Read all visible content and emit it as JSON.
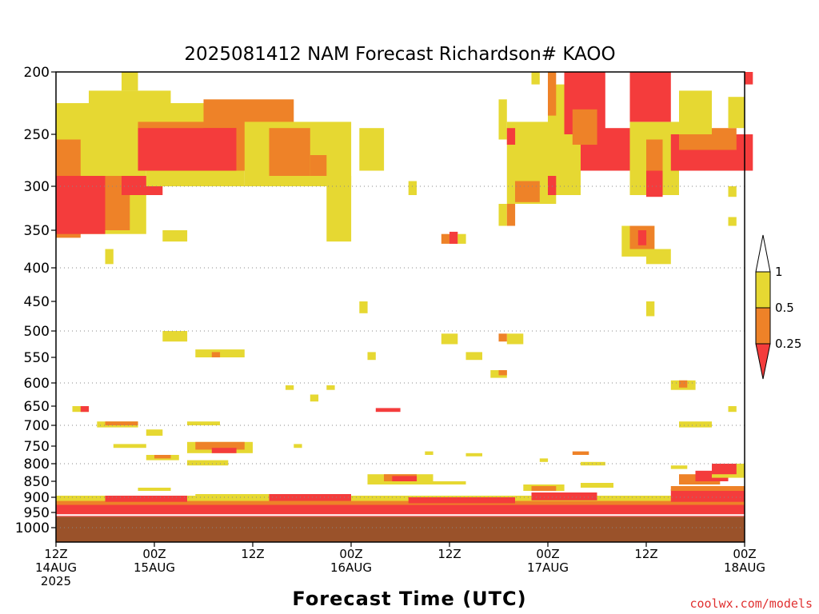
{
  "chart_data": {
    "type": "heatmap",
    "title": "2025081412 NAM Forecast Richardson# KAOO",
    "xlabel": "Forecast Time (UTC)",
    "credit": "coolwx.com/models",
    "y_axis": {
      "scale": "pressure (inverted, log-like)",
      "range": [
        1000,
        200
      ],
      "tick_labels": [
        "200",
        "250",
        "300",
        "350",
        "400",
        "450",
        "500",
        "550",
        "600",
        "650",
        "700",
        "750",
        "800",
        "850",
        "900",
        "950",
        "1000"
      ],
      "gridlines_at": [
        300,
        400,
        500,
        600,
        700,
        800,
        900,
        1000
      ]
    },
    "x_axis": {
      "range": [
        "2025-08-14 12Z",
        "2025-08-18 00Z"
      ],
      "ticks": [
        {
          "hour": 0,
          "line1": "12Z",
          "line2": "14AUG",
          "line3": "2025"
        },
        {
          "hour": 12,
          "line1": "00Z",
          "line2": "15AUG",
          "line3": ""
        },
        {
          "hour": 24,
          "line1": "12Z",
          "line2": "",
          "line3": ""
        },
        {
          "hour": 36,
          "line1": "00Z",
          "line2": "16AUG",
          "line3": ""
        },
        {
          "hour": 48,
          "line1": "12Z",
          "line2": "",
          "line3": ""
        },
        {
          "hour": 60,
          "line1": "00Z",
          "line2": "17AUG",
          "line3": ""
        },
        {
          "hour": 72,
          "line1": "12Z",
          "line2": "",
          "line3": ""
        },
        {
          "hour": 84,
          "line1": "00Z",
          "line2": "18AUG",
          "line3": ""
        }
      ]
    },
    "legend": {
      "labels": [
        "1",
        "0.5",
        "0.25"
      ],
      "classes": [
        {
          "range": "0.5 to 1",
          "color": "#e6d832"
        },
        {
          "range": "0.25 to 0.5",
          "color": "#ee8228"
        },
        {
          "range": "below 0.25",
          "color": "#f43c3c"
        }
      ]
    },
    "ground": {
      "color": "#9a522a",
      "surface_pressure": 964
    },
    "blob_colors": {
      "y": "#e6d832",
      "o": "#ee8228",
      "r": "#f43c3c"
    },
    "regions": [
      {
        "c": "y",
        "h": [
          0,
          11
        ],
        "p": [
          225,
          355
        ]
      },
      {
        "c": "y",
        "h": [
          4,
          14
        ],
        "p": [
          215,
          245
        ]
      },
      {
        "c": "y",
        "h": [
          8,
          10
        ],
        "p": [
          200,
          215
        ]
      },
      {
        "c": "o",
        "h": [
          0,
          3
        ],
        "p": [
          255,
          360
        ]
      },
      {
        "c": "o",
        "h": [
          4,
          9
        ],
        "p": [
          290,
          350
        ]
      },
      {
        "c": "r",
        "h": [
          0,
          6
        ],
        "p": [
          290,
          355
        ]
      },
      {
        "c": "r",
        "h": [
          8,
          13
        ],
        "p": [
          290,
          310
        ]
      },
      {
        "c": "y",
        "h": [
          11,
          23
        ],
        "p": [
          225,
          300
        ]
      },
      {
        "c": "o",
        "h": [
          10,
          27
        ],
        "p": [
          240,
          285
        ]
      },
      {
        "c": "o",
        "h": [
          18,
          29
        ],
        "p": [
          222,
          245
        ]
      },
      {
        "c": "r",
        "h": [
          10,
          22
        ],
        "p": [
          245,
          285
        ]
      },
      {
        "c": "r",
        "h": [
          18,
          22
        ],
        "p": [
          245,
          265
        ]
      },
      {
        "c": "y",
        "h": [
          23,
          36
        ],
        "p": [
          240,
          300
        ]
      },
      {
        "c": "o",
        "h": [
          26,
          31
        ],
        "p": [
          245,
          290
        ]
      },
      {
        "c": "o",
        "h": [
          31,
          33
        ],
        "p": [
          270,
          290
        ]
      },
      {
        "c": "y",
        "h": [
          33,
          36
        ],
        "p": [
          290,
          365
        ]
      },
      {
        "c": "y",
        "h": [
          37,
          40
        ],
        "p": [
          245,
          285
        ]
      },
      {
        "c": "y",
        "h": [
          13,
          16
        ],
        "p": [
          350,
          365
        ]
      },
      {
        "c": "y",
        "h": [
          6,
          7
        ],
        "p": [
          375,
          395
        ]
      },
      {
        "c": "y",
        "h": [
          43,
          44
        ],
        "p": [
          295,
          310
        ]
      },
      {
        "c": "o",
        "h": [
          47,
          49
        ],
        "p": [
          355,
          368
        ]
      },
      {
        "c": "r",
        "h": [
          48,
          49
        ],
        "p": [
          352,
          368
        ]
      },
      {
        "c": "y",
        "h": [
          49,
          50
        ],
        "p": [
          355,
          368
        ]
      },
      {
        "c": "y",
        "h": [
          54,
          55
        ],
        "p": [
          222,
          255
        ]
      },
      {
        "c": "y",
        "h": [
          54,
          55
        ],
        "p": [
          320,
          345
        ]
      },
      {
        "c": "o",
        "h": [
          55,
          56
        ],
        "p": [
          320,
          345
        ]
      },
      {
        "c": "y",
        "h": [
          55,
          61
        ],
        "p": [
          240,
          320
        ]
      },
      {
        "c": "o",
        "h": [
          56,
          59
        ],
        "p": [
          295,
          318
        ]
      },
      {
        "c": "r",
        "h": [
          55,
          56
        ],
        "p": [
          245,
          260
        ]
      },
      {
        "c": "y",
        "h": [
          58,
          59
        ],
        "p": [
          200,
          210
        ]
      },
      {
        "c": "y",
        "h": [
          60,
          64
        ],
        "p": [
          210,
          310
        ]
      },
      {
        "c": "o",
        "h": [
          60,
          61
        ],
        "p": [
          200,
          235
        ]
      },
      {
        "c": "r",
        "h": [
          60,
          61
        ],
        "p": [
          290,
          310
        ]
      },
      {
        "c": "r",
        "h": [
          62,
          67
        ],
        "p": [
          200,
          250
        ]
      },
      {
        "c": "r",
        "h": [
          64,
          73
        ],
        "p": [
          245,
          285
        ]
      },
      {
        "c": "o",
        "h": [
          63,
          66
        ],
        "p": [
          230,
          260
        ]
      },
      {
        "c": "y",
        "h": [
          70,
          76
        ],
        "p": [
          240,
          310
        ]
      },
      {
        "c": "r",
        "h": [
          70,
          75
        ],
        "p": [
          200,
          240
        ]
      },
      {
        "c": "o",
        "h": [
          72,
          74
        ],
        "p": [
          255,
          295
        ]
      },
      {
        "c": "r",
        "h": [
          72,
          74
        ],
        "p": [
          285,
          312
        ]
      },
      {
        "c": "r",
        "h": [
          75,
          85
        ],
        "p": [
          250,
          285
        ]
      },
      {
        "c": "o",
        "h": [
          76,
          83
        ],
        "p": [
          245,
          265
        ]
      },
      {
        "c": "y",
        "h": [
          76,
          80
        ],
        "p": [
          215,
          250
        ]
      },
      {
        "c": "y",
        "h": [
          82,
          84
        ],
        "p": [
          220,
          245
        ]
      },
      {
        "c": "r",
        "h": [
          84,
          85
        ],
        "p": [
          200,
          210
        ]
      },
      {
        "c": "y",
        "h": [
          82,
          83
        ],
        "p": [
          300,
          312
        ]
      },
      {
        "c": "y",
        "h": [
          82,
          83
        ],
        "p": [
          335,
          345
        ]
      },
      {
        "c": "y",
        "h": [
          69,
          73
        ],
        "p": [
          345,
          385
        ]
      },
      {
        "c": "o",
        "h": [
          70,
          73
        ],
        "p": [
          345,
          375
        ]
      },
      {
        "c": "r",
        "h": [
          71,
          72
        ],
        "p": [
          350,
          370
        ]
      },
      {
        "c": "y",
        "h": [
          72,
          75
        ],
        "p": [
          375,
          395
        ]
      },
      {
        "c": "y",
        "h": [
          72,
          73
        ],
        "p": [
          450,
          475
        ]
      },
      {
        "c": "y",
        "h": [
          37,
          38
        ],
        "p": [
          450,
          470
        ]
      },
      {
        "c": "y",
        "h": [
          13,
          16
        ],
        "p": [
          500,
          520
        ]
      },
      {
        "c": "y",
        "h": [
          17,
          23
        ],
        "p": [
          535,
          550
        ]
      },
      {
        "c": "o",
        "h": [
          19,
          20
        ],
        "p": [
          540,
          550
        ]
      },
      {
        "c": "y",
        "h": [
          38,
          39
        ],
        "p": [
          540,
          555
        ]
      },
      {
        "c": "y",
        "h": [
          47,
          49
        ],
        "p": [
          505,
          525
        ]
      },
      {
        "c": "y",
        "h": [
          50,
          52
        ],
        "p": [
          540,
          555
        ]
      },
      {
        "c": "y",
        "h": [
          55,
          57
        ],
        "p": [
          505,
          525
        ]
      },
      {
        "c": "o",
        "h": [
          54,
          55
        ],
        "p": [
          505,
          520
        ]
      },
      {
        "c": "y",
        "h": [
          53,
          55
        ],
        "p": [
          575,
          590
        ]
      },
      {
        "c": "o",
        "h": [
          54,
          55
        ],
        "p": [
          575,
          585
        ]
      },
      {
        "c": "y",
        "h": [
          75,
          78
        ],
        "p": [
          595,
          615
        ]
      },
      {
        "c": "o",
        "h": [
          76,
          77
        ],
        "p": [
          595,
          610
        ]
      },
      {
        "c": "y",
        "h": [
          28,
          29
        ],
        "p": [
          605,
          615
        ]
      },
      {
        "c": "y",
        "h": [
          31,
          32
        ],
        "p": [
          625,
          640
        ]
      },
      {
        "c": "y",
        "h": [
          33,
          34
        ],
        "p": [
          605,
          615
        ]
      },
      {
        "c": "y",
        "h": [
          2,
          4
        ],
        "p": [
          650,
          665
        ]
      },
      {
        "c": "r",
        "h": [
          3,
          4
        ],
        "p": [
          650,
          665
        ]
      },
      {
        "c": "r",
        "h": [
          39,
          42
        ],
        "p": [
          655,
          665
        ]
      },
      {
        "c": "y",
        "h": [
          82,
          83
        ],
        "p": [
          650,
          665
        ]
      },
      {
        "c": "y",
        "h": [
          5,
          10
        ],
        "p": [
          690,
          705
        ]
      },
      {
        "c": "o",
        "h": [
          6,
          10
        ],
        "p": [
          690,
          700
        ]
      },
      {
        "c": "y",
        "h": [
          11,
          13
        ],
        "p": [
          710,
          725
        ]
      },
      {
        "c": "y",
        "h": [
          16,
          20
        ],
        "p": [
          690,
          700
        ]
      },
      {
        "c": "y",
        "h": [
          76,
          80
        ],
        "p": [
          690,
          705
        ]
      },
      {
        "c": "y",
        "h": [
          16,
          24
        ],
        "p": [
          740,
          770
        ]
      },
      {
        "c": "o",
        "h": [
          17,
          23
        ],
        "p": [
          740,
          760
        ]
      },
      {
        "c": "r",
        "h": [
          19,
          22
        ],
        "p": [
          755,
          770
        ]
      },
      {
        "c": "y",
        "h": [
          7,
          11
        ],
        "p": [
          745,
          755
        ]
      },
      {
        "c": "y",
        "h": [
          29,
          30
        ],
        "p": [
          745,
          755
        ]
      },
      {
        "c": "y",
        "h": [
          11,
          15
        ],
        "p": [
          775,
          790
        ]
      },
      {
        "c": "o",
        "h": [
          12,
          14
        ],
        "p": [
          775,
          785
        ]
      },
      {
        "c": "y",
        "h": [
          16,
          21
        ],
        "p": [
          790,
          805
        ]
      },
      {
        "c": "y",
        "h": [
          45,
          46
        ],
        "p": [
          765,
          775
        ]
      },
      {
        "c": "y",
        "h": [
          50,
          52
        ],
        "p": [
          770,
          778
        ]
      },
      {
        "c": "o",
        "h": [
          63,
          65
        ],
        "p": [
          765,
          775
        ]
      },
      {
        "c": "y",
        "h": [
          59,
          60
        ],
        "p": [
          785,
          795
        ]
      },
      {
        "c": "y",
        "h": [
          64,
          67
        ],
        "p": [
          795,
          805
        ]
      },
      {
        "c": "y",
        "h": [
          38,
          46
        ],
        "p": [
          830,
          860
        ]
      },
      {
        "c": "o",
        "h": [
          40,
          44
        ],
        "p": [
          830,
          850
        ]
      },
      {
        "c": "r",
        "h": [
          41,
          44
        ],
        "p": [
          835,
          850
        ]
      },
      {
        "c": "y",
        "h": [
          46,
          50
        ],
        "p": [
          850,
          860
        ]
      },
      {
        "c": "y",
        "h": [
          57,
          62
        ],
        "p": [
          860,
          880
        ]
      },
      {
        "c": "o",
        "h": [
          58,
          61
        ],
        "p": [
          865,
          880
        ]
      },
      {
        "c": "y",
        "h": [
          64,
          68
        ],
        "p": [
          855,
          870
        ]
      },
      {
        "c": "o",
        "h": [
          76,
          81
        ],
        "p": [
          830,
          860
        ]
      },
      {
        "c": "r",
        "h": [
          78,
          82
        ],
        "p": [
          820,
          850
        ]
      },
      {
        "c": "y",
        "h": [
          80,
          84
        ],
        "p": [
          800,
          840
        ]
      },
      {
        "c": "r",
        "h": [
          80,
          83
        ],
        "p": [
          800,
          830
        ]
      },
      {
        "c": "y",
        "h": [
          75,
          77
        ],
        "p": [
          805,
          815
        ]
      },
      {
        "c": "y",
        "h": [
          10,
          14
        ],
        "p": [
          870,
          880
        ]
      },
      {
        "c": "y",
        "h": [
          17,
          29
        ],
        "p": [
          890,
          900
        ]
      },
      {
        "c": "r",
        "h": [
          0,
          84
        ],
        "p": [
          915,
          964
        ]
      },
      {
        "c": "o",
        "h": [
          0,
          84
        ],
        "p": [
          905,
          925
        ]
      },
      {
        "c": "y",
        "h": [
          0,
          84
        ],
        "p": [
          895,
          912
        ]
      },
      {
        "c": "r",
        "h": [
          6,
          16
        ],
        "p": [
          895,
          915
        ]
      },
      {
        "c": "r",
        "h": [
          26,
          36
        ],
        "p": [
          890,
          912
        ]
      },
      {
        "c": "r",
        "h": [
          43,
          56
        ],
        "p": [
          900,
          920
        ]
      },
      {
        "c": "r",
        "h": [
          58,
          66
        ],
        "p": [
          885,
          910
        ]
      },
      {
        "c": "r",
        "h": [
          75,
          84
        ],
        "p": [
          875,
          915
        ]
      },
      {
        "c": "o",
        "h": [
          75,
          84
        ],
        "p": [
          865,
          880
        ]
      }
    ]
  }
}
